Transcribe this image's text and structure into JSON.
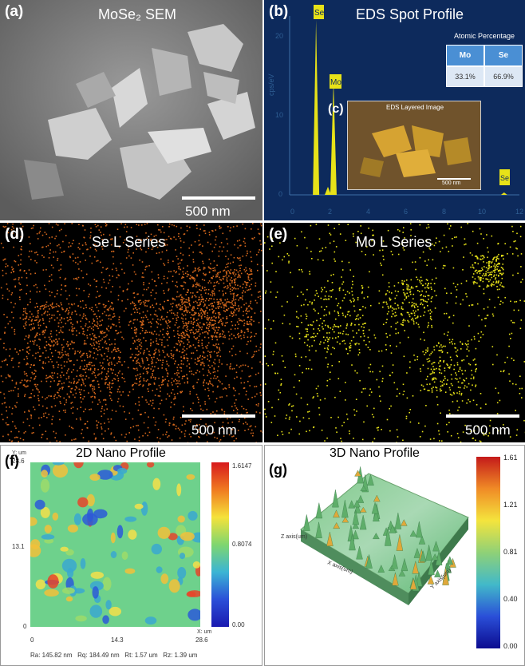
{
  "panel_a": {
    "label": "(a)",
    "title": "MoSe₂ SEM",
    "scale_bar": "500 nm"
  },
  "panel_b": {
    "label": "(b)",
    "title": "EDS Spot Profile",
    "ylabel": "cps/eV",
    "y_ticks": [
      "20",
      "10",
      "0"
    ],
    "x_ticks": [
      "0",
      "2",
      "4",
      "6",
      "8",
      "10",
      "12"
    ],
    "peak_labels": [
      "Se",
      "Mo",
      "Se"
    ],
    "atomic_table": {
      "title": "Atomic Percentage",
      "headers": [
        "Mo",
        "Se"
      ],
      "values": [
        "33.1%",
        "66.9%"
      ]
    },
    "inset": {
      "label": "(c)",
      "title": "EDS Layered Image",
      "scale_bar": "500 nm"
    }
  },
  "panel_d": {
    "label": "(d)",
    "title": "Se L Series",
    "scale_bar": "500 nm",
    "color": "#d2661c"
  },
  "panel_e": {
    "label": "(e)",
    "title": "Mo L Series",
    "scale_bar": "500 nm",
    "color": "#e7e218"
  },
  "panel_f": {
    "label": "(f)",
    "title": "2D Nano Profile",
    "y_unit": "Y: um",
    "x_unit": "X: um",
    "y_ticks": [
      "28.6",
      "13.1",
      "0"
    ],
    "x_ticks": [
      "0",
      "14.3",
      "28.6"
    ],
    "colorbar_ticks": [
      "1.6147",
      "0.8074",
      "0.00"
    ],
    "stats": "Ra: 145.82 nm   Rq: 184.49 nm   Rt: 1.57 um   Rz: 1.39 um"
  },
  "panel_g": {
    "label": "(g)",
    "title": "3D Nano Profile",
    "colorbar_ticks": [
      "1.61",
      "1.21",
      "0.81",
      "0.40",
      "0.00"
    ],
    "x_axis_label": "X axis(um)",
    "y_axis_label": "Y axis(um)",
    "z_axis_label": "Z axis(um)"
  },
  "chart_data": {
    "type": "bar",
    "title": "EDS Spot Profile",
    "ylabel": "cps/eV",
    "xlim": [
      0,
      12
    ],
    "ylim": [
      0,
      22
    ],
    "x": [
      1.38,
      2.29,
      2.0,
      11.2
    ],
    "values": [
      21.5,
      14.0,
      1.0,
      0.3
    ],
    "peak_names": [
      "Se",
      "Mo",
      "",
      "Se"
    ]
  }
}
